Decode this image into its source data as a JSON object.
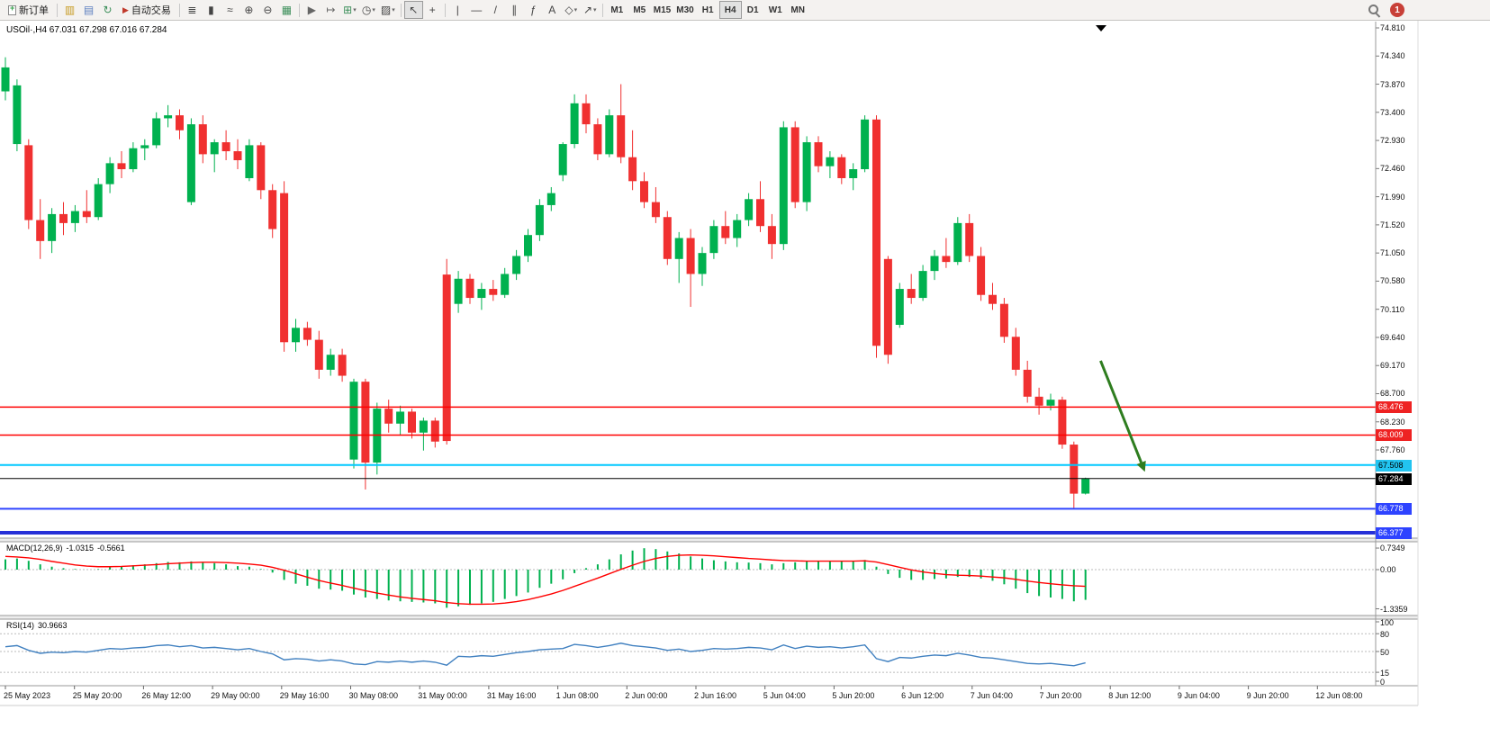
{
  "toolbar": {
    "new_order": "新订单",
    "auto_trading": "自动交易",
    "notification_count": "1",
    "timeframes": [
      "M1",
      "M5",
      "M15",
      "M30",
      "H1",
      "H4",
      "D1",
      "W1",
      "MN"
    ],
    "active_timeframe": "H4",
    "icons_a": [
      {
        "name": "charts-icon",
        "glyph": "▥",
        "color": "#C79B22"
      },
      {
        "name": "profiles-icon",
        "glyph": "▤",
        "color": "#5B7FBF"
      },
      {
        "name": "refresh-icon",
        "glyph": "↻",
        "color": "#3C8F5A"
      }
    ],
    "icons_b": [
      {
        "sep": true
      },
      {
        "name": "bar-chart-icon",
        "glyph": "≣"
      },
      {
        "name": "candlestick-chart-icon",
        "glyph": "▮"
      },
      {
        "name": "line-chart-icon",
        "glyph": "≈"
      },
      {
        "name": "zoom-in-icon",
        "glyph": "⊕"
      },
      {
        "name": "zoom-out-icon",
        "glyph": "⊖"
      },
      {
        "name": "tile-windows-icon",
        "glyph": "▦",
        "color": "#3C8F5A"
      },
      {
        "sep": true
      },
      {
        "name": "auto-scroll-icon",
        "glyph": "▶",
        "color": "#666666"
      },
      {
        "name": "chart-shift-icon",
        "glyph": "↦",
        "color": "#666666"
      },
      {
        "name": "new-chart-icon",
        "glyph": "⊞",
        "color": "#3C8F5A",
        "dropdown": true
      },
      {
        "name": "periods-icon",
        "glyph": "◷",
        "dropdown": true
      },
      {
        "name": "templates-icon",
        "glyph": "▨",
        "dropdown": true
      },
      {
        "sep": true
      },
      {
        "name": "cursor-icon",
        "glyph": "↖",
        "pressed": true
      },
      {
        "name": "crosshair-icon",
        "glyph": "+"
      },
      {
        "sep": true
      },
      {
        "name": "vertical-line-icon",
        "glyph": "|"
      },
      {
        "name": "horizontal-line-icon",
        "glyph": "—"
      },
      {
        "name": "trendline-icon",
        "glyph": "/"
      },
      {
        "name": "channel-icon",
        "glyph": "∥"
      },
      {
        "name": "fibonacci-icon",
        "glyph": "ƒ"
      },
      {
        "name": "text-tool-icon",
        "glyph": "A"
      },
      {
        "name": "shapes-icon",
        "glyph": "◇",
        "dropdown": true
      },
      {
        "name": "arrows-tool-icon",
        "glyph": "↗",
        "dropdown": true
      },
      {
        "sep": true
      }
    ]
  },
  "chart": {
    "title": "USOil·,H4 67.031 67.298 67.016 67.284",
    "symbol": "USOil",
    "timeframe": "H4",
    "open": "67.031",
    "high": "67.298",
    "low": "67.016",
    "close": "67.284"
  },
  "price_axis": {
    "ticks": [
      "74.810",
      "74.340",
      "73.870",
      "73.400",
      "72.930",
      "72.460",
      "71.990",
      "71.520",
      "71.050",
      "70.580",
      "70.110",
      "69.640",
      "69.170",
      "68.700",
      "68.230",
      "67.760"
    ],
    "badges": [
      {
        "value": "68.476",
        "bg": "#EE2222",
        "fg": "#FFFFFF"
      },
      {
        "value": "68.009",
        "bg": "#EE2222",
        "fg": "#FFFFFF"
      },
      {
        "value": "67.508",
        "bg": "#22C4F0",
        "fg": "#000000"
      },
      {
        "value": "67.284",
        "bg": "#000000",
        "fg": "#FFFFFF"
      },
      {
        "value": "66.778",
        "bg": "#2E43FF",
        "fg": "#FFFFFF"
      },
      {
        "value": "66.377",
        "bg": "#2E43FF",
        "fg": "#FFFFFF"
      }
    ]
  },
  "time_axis": [
    "25 May 2023",
    "25 May 20:00",
    "26 May 12:00",
    "29 May 00:00",
    "29 May 16:00",
    "30 May 08:00",
    "31 May 00:00",
    "31 May 16:00",
    "1 Jun 08:00",
    "2 Jun 00:00",
    "2 Jun 16:00",
    "5 Jun 04:00",
    "5 Jun 20:00",
    "6 Jun 12:00",
    "7 Jun 04:00",
    "7 Jun 20:00",
    "8 Jun 12:00",
    "9 Jun 04:00",
    "9 Jun 20:00",
    "12 Jun 08:00"
  ],
  "indicators": {
    "macd": {
      "label": "MACD(12,26,9)",
      "value": "-1.0315",
      "signal": "-0.5661",
      "axis": [
        "0.7349",
        "0.00",
        "-1.3359"
      ]
    },
    "rsi": {
      "label": "RSI(14)",
      "value": "30.9663",
      "axis": [
        "100",
        "80",
        "50",
        "15",
        "0"
      ]
    }
  },
  "chart_data": [
    {
      "type": "candlestick",
      "title": "USOil H4",
      "symbol": "USOil",
      "timeframe": "H4",
      "ylim": [
        66.29,
        74.92
      ],
      "y_ticks": [
        74.81,
        74.34,
        73.87,
        73.4,
        72.93,
        72.46,
        71.99,
        71.52,
        71.05,
        70.58,
        70.11,
        69.64,
        69.17,
        68.7,
        68.23,
        67.76
      ],
      "up_color": "#00B14F",
      "down_color": "#F03030",
      "candles": [
        [
          73.75,
          74.32,
          73.6,
          74.15
        ],
        [
          72.87,
          73.95,
          72.75,
          73.85
        ],
        [
          72.85,
          72.95,
          71.45,
          71.6
        ],
        [
          71.6,
          71.95,
          70.95,
          71.25
        ],
        [
          71.25,
          71.8,
          71.05,
          71.7
        ],
        [
          71.7,
          71.9,
          71.35,
          71.55
        ],
        [
          71.55,
          71.85,
          71.4,
          71.75
        ],
        [
          71.75,
          72.1,
          71.55,
          71.65
        ],
        [
          71.65,
          72.3,
          71.6,
          72.2
        ],
        [
          72.2,
          72.65,
          72.05,
          72.55
        ],
        [
          72.55,
          72.75,
          72.3,
          72.45
        ],
        [
          72.45,
          72.9,
          72.4,
          72.8
        ],
        [
          72.8,
          72.95,
          72.6,
          72.85
        ],
        [
          72.85,
          73.4,
          72.8,
          73.3
        ],
        [
          73.3,
          73.52,
          73.15,
          73.35
        ],
        [
          73.35,
          73.45,
          72.95,
          73.1
        ],
        [
          71.9,
          73.3,
          71.85,
          73.2
        ],
        [
          73.2,
          73.35,
          72.55,
          72.7
        ],
        [
          72.7,
          72.95,
          72.4,
          72.9
        ],
        [
          72.9,
          73.1,
          72.6,
          72.75
        ],
        [
          72.75,
          72.95,
          72.45,
          72.6
        ],
        [
          72.3,
          72.95,
          72.25,
          72.85
        ],
        [
          72.85,
          72.9,
          71.95,
          72.1
        ],
        [
          72.1,
          72.2,
          71.3,
          71.45
        ],
        [
          72.05,
          72.25,
          69.4,
          69.56
        ],
        [
          69.56,
          69.95,
          69.4,
          69.8
        ],
        [
          69.8,
          69.9,
          69.5,
          69.6
        ],
        [
          69.6,
          69.75,
          68.95,
          69.1
        ],
        [
          69.1,
          69.45,
          69.0,
          69.35
        ],
        [
          69.35,
          69.45,
          68.9,
          69.0
        ],
        [
          67.6,
          68.95,
          67.45,
          68.9
        ],
        [
          68.9,
          68.95,
          67.1,
          67.55
        ],
        [
          67.55,
          68.55,
          67.35,
          68.45
        ],
        [
          68.45,
          68.6,
          68.05,
          68.2
        ],
        [
          68.2,
          68.5,
          68.0,
          68.4
        ],
        [
          68.4,
          68.45,
          67.95,
          68.05
        ],
        [
          68.05,
          68.3,
          67.75,
          68.25
        ],
        [
          68.25,
          68.3,
          67.8,
          67.9
        ],
        [
          70.69,
          70.95,
          67.85,
          67.91
        ],
        [
          70.2,
          70.75,
          70.05,
          70.62
        ],
        [
          70.62,
          70.7,
          70.2,
          70.3
        ],
        [
          70.3,
          70.55,
          70.1,
          70.45
        ],
        [
          70.45,
          70.6,
          70.25,
          70.35
        ],
        [
          70.35,
          70.8,
          70.3,
          70.7
        ],
        [
          70.7,
          71.1,
          70.6,
          71.0
        ],
        [
          71.0,
          71.45,
          70.9,
          71.35
        ],
        [
          71.35,
          71.95,
          71.25,
          71.85
        ],
        [
          71.85,
          72.15,
          71.75,
          72.05
        ],
        [
          72.35,
          72.9,
          72.25,
          72.87
        ],
        [
          72.87,
          73.7,
          72.8,
          73.55
        ],
        [
          73.55,
          73.7,
          73.05,
          73.2
        ],
        [
          73.2,
          73.3,
          72.6,
          72.7
        ],
        [
          72.7,
          73.45,
          72.65,
          73.35
        ],
        [
          73.35,
          73.87,
          72.55,
          72.65
        ],
        [
          72.65,
          73.1,
          72.1,
          72.25
        ],
        [
          72.25,
          72.4,
          71.8,
          71.9
        ],
        [
          71.9,
          72.15,
          71.55,
          71.65
        ],
        [
          71.65,
          71.75,
          70.85,
          70.95
        ],
        [
          70.95,
          71.4,
          70.55,
          71.3
        ],
        [
          71.3,
          71.45,
          70.15,
          70.7
        ],
        [
          70.7,
          71.15,
          70.5,
          71.05
        ],
        [
          71.05,
          71.6,
          70.95,
          71.5
        ],
        [
          71.5,
          71.75,
          71.2,
          71.3
        ],
        [
          71.3,
          71.7,
          71.15,
          71.6
        ],
        [
          71.6,
          72.05,
          71.5,
          71.95
        ],
        [
          71.95,
          72.25,
          71.4,
          71.5
        ],
        [
          71.5,
          71.7,
          70.95,
          71.2
        ],
        [
          71.2,
          73.25,
          71.1,
          73.15
        ],
        [
          73.15,
          73.25,
          71.8,
          71.9
        ],
        [
          71.9,
          73.0,
          71.75,
          72.9
        ],
        [
          72.9,
          73.0,
          72.4,
          72.5
        ],
        [
          72.5,
          72.75,
          72.3,
          72.65
        ],
        [
          72.65,
          72.7,
          72.2,
          72.3
        ],
        [
          72.3,
          72.55,
          72.1,
          72.45
        ],
        [
          72.45,
          73.35,
          72.4,
          73.28
        ],
        [
          73.28,
          73.35,
          69.3,
          69.5
        ],
        [
          70.95,
          71.0,
          69.2,
          69.35
        ],
        [
          69.85,
          70.55,
          69.8,
          70.45
        ],
        [
          70.45,
          70.7,
          70.2,
          70.3
        ],
        [
          70.3,
          70.85,
          70.25,
          70.75
        ],
        [
          70.75,
          71.1,
          70.6,
          71.0
        ],
        [
          71.0,
          71.3,
          70.8,
          70.9
        ],
        [
          70.9,
          71.65,
          70.85,
          71.55
        ],
        [
          71.55,
          71.7,
          70.9,
          71.0
        ],
        [
          71.0,
          71.15,
          70.25,
          70.35
        ],
        [
          70.35,
          70.55,
          70.1,
          70.2
        ],
        [
          70.2,
          70.3,
          69.55,
          69.65
        ],
        [
          69.65,
          69.8,
          69.0,
          69.1
        ],
        [
          69.1,
          69.25,
          68.55,
          68.65
        ],
        [
          68.65,
          68.8,
          68.35,
          68.5
        ],
        [
          68.5,
          68.7,
          68.42,
          68.6
        ],
        [
          68.6,
          68.65,
          67.78,
          67.85
        ],
        [
          67.85,
          67.9,
          66.78,
          67.03
        ],
        [
          67.031,
          67.298,
          67.016,
          67.284
        ]
      ],
      "hlines": [
        {
          "price": 68.476,
          "color": "#FF0000",
          "width": 1.5
        },
        {
          "price": 68.009,
          "color": "#FF0000",
          "width": 1.5
        },
        {
          "price": 67.508,
          "color": "#00C8FF",
          "width": 2
        },
        {
          "price": 67.284,
          "color": "#000000",
          "width": 1
        },
        {
          "price": 66.778,
          "color": "#2E43FF",
          "width": 2
        },
        {
          "price": 66.377,
          "color": "#2630D8",
          "width": 4
        }
      ],
      "arrow": {
        "i1": 94.3,
        "p1": 69.25,
        "i2": 97.8,
        "p2": 67.55,
        "color": "#2E7D1F"
      }
    },
    {
      "type": "bar+line",
      "name": "MACD(12,26,9)",
      "value": -1.0315,
      "signal_value": -0.5661,
      "hist_color": "#00B14F",
      "signal_color": "#FF0000",
      "y_ticks": [
        0.7349,
        0,
        -1.3359
      ],
      "histogram": [
        0.35,
        0.38,
        0.3,
        0.18,
        0.1,
        0.05,
        0.02,
        0.0,
        0.02,
        0.08,
        0.12,
        0.15,
        0.18,
        0.22,
        0.26,
        0.25,
        0.28,
        0.26,
        0.22,
        0.18,
        0.12,
        0.1,
        0.02,
        -0.1,
        -0.35,
        -0.48,
        -0.55,
        -0.65,
        -0.68,
        -0.72,
        -0.85,
        -0.95,
        -1.0,
        -1.05,
        -1.08,
        -1.1,
        -1.12,
        -1.15,
        -1.3,
        -1.25,
        -1.2,
        -1.15,
        -1.1,
        -1.0,
        -0.9,
        -0.78,
        -0.62,
        -0.48,
        -0.33,
        -0.12,
        0.05,
        0.18,
        0.35,
        0.52,
        0.65,
        0.73,
        0.7,
        0.62,
        0.55,
        0.45,
        0.38,
        0.32,
        0.28,
        0.25,
        0.24,
        0.22,
        0.18,
        0.22,
        0.25,
        0.28,
        0.3,
        0.3,
        0.28,
        0.3,
        0.33,
        0.1,
        -0.15,
        -0.28,
        -0.35,
        -0.35,
        -0.32,
        -0.3,
        -0.25,
        -0.25,
        -0.3,
        -0.38,
        -0.5,
        -0.65,
        -0.8,
        -0.9,
        -0.95,
        -1.0,
        -1.08,
        -1.03
      ],
      "signal": [
        0.45,
        0.43,
        0.4,
        0.35,
        0.28,
        0.22,
        0.16,
        0.12,
        0.1,
        0.1,
        0.11,
        0.13,
        0.15,
        0.17,
        0.2,
        0.22,
        0.24,
        0.25,
        0.25,
        0.24,
        0.22,
        0.19,
        0.15,
        0.08,
        -0.02,
        -0.14,
        -0.26,
        -0.37,
        -0.46,
        -0.54,
        -0.63,
        -0.72,
        -0.8,
        -0.87,
        -0.93,
        -0.98,
        -1.02,
        -1.06,
        -1.12,
        -1.16,
        -1.18,
        -1.18,
        -1.17,
        -1.14,
        -1.09,
        -1.02,
        -0.93,
        -0.83,
        -0.71,
        -0.57,
        -0.43,
        -0.29,
        -0.14,
        0.01,
        0.15,
        0.28,
        0.38,
        0.45,
        0.49,
        0.5,
        0.49,
        0.47,
        0.44,
        0.41,
        0.38,
        0.36,
        0.33,
        0.31,
        0.3,
        0.29,
        0.29,
        0.29,
        0.29,
        0.29,
        0.3,
        0.26,
        0.17,
        0.08,
        -0.01,
        -0.08,
        -0.13,
        -0.17,
        -0.19,
        -0.2,
        -0.22,
        -0.25,
        -0.28,
        -0.33,
        -0.39,
        -0.44,
        -0.48,
        -0.52,
        -0.55,
        -0.57
      ]
    },
    {
      "type": "line",
      "name": "RSI(14)",
      "value": 30.9663,
      "line_color": "#4080C0",
      "levels": [
        80,
        50,
        15
      ],
      "y_ticks": [
        100,
        80,
        50,
        15,
        0
      ],
      "values": [
        58,
        60,
        52,
        47,
        49,
        48,
        50,
        49,
        52,
        55,
        54,
        56,
        57,
        60,
        61,
        58,
        60,
        56,
        57,
        55,
        53,
        55,
        50,
        46,
        36,
        38,
        37,
        34,
        36,
        34,
        29,
        28,
        33,
        32,
        34,
        32,
        34,
        32,
        27,
        42,
        41,
        43,
        42,
        45,
        48,
        50,
        53,
        54,
        55,
        62,
        60,
        57,
        60,
        64,
        60,
        58,
        56,
        52,
        54,
        50,
        52,
        55,
        54,
        55,
        57,
        56,
        53,
        61,
        55,
        59,
        57,
        58,
        56,
        58,
        61,
        38,
        33,
        40,
        39,
        42,
        44,
        43,
        47,
        44,
        40,
        39,
        36,
        33,
        30,
        29,
        30,
        28,
        26,
        31
      ]
    }
  ]
}
